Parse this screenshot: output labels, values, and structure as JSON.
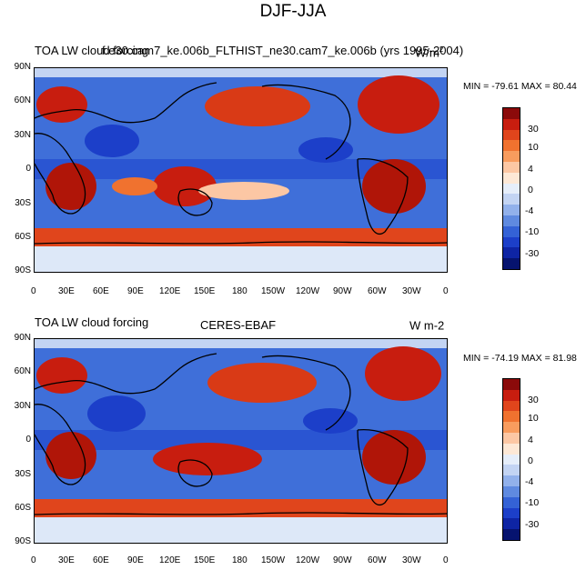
{
  "main_title": "DJF-JJA",
  "panels": [
    {
      "left_title": "TOA LW cloud forcing",
      "center_title": "f.e30.cam7_ke.006b_FLTHIST_ne30.cam7_ke.006b (yrs 1995-2004)",
      "right_title_base": "W/m",
      "right_title_sup": "2",
      "stats": "MIN = -79.61 MAX = 80.44"
    },
    {
      "left_title": "TOA LW cloud forcing",
      "center_title": "CERES-EBAF",
      "right_title_base": "W m-2",
      "right_title_sup": "",
      "stats": "MIN = -74.19 MAX = 81.98"
    }
  ],
  "lat_labels": [
    "90N",
    "60N",
    "30N",
    "0",
    "30S",
    "60S",
    "90S"
  ],
  "lon_labels": [
    "0",
    "30E",
    "60E",
    "90E",
    "120E",
    "150E",
    "180",
    "150W",
    "120W",
    "90W",
    "60W",
    "30W",
    "0"
  ],
  "colorbar": {
    "labels": [
      "30",
      "10",
      "4",
      "0",
      "-4",
      "-10",
      "-30"
    ],
    "colors": [
      "#8b0a0a",
      "#c81d0f",
      "#e0451c",
      "#f0722f",
      "#f89c5e",
      "#fcc7a4",
      "#fde8d6",
      "#e6eefa",
      "#c3d4f3",
      "#92b1eb",
      "#5f8ae0",
      "#3462d6",
      "#1c3fc9",
      "#0e24a4",
      "#06136f"
    ]
  }
}
